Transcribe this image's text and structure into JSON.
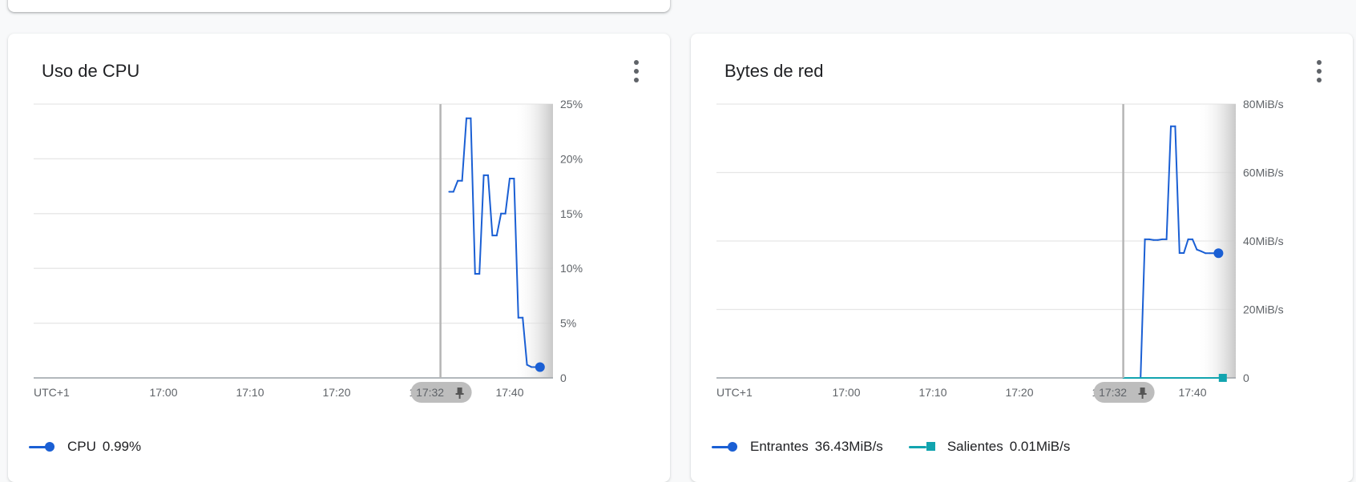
{
  "colors": {
    "cpu": "#1a5fd4",
    "incoming": "#1a5fd4",
    "outgoing": "#12a4af"
  },
  "cards": [
    {
      "title": "Uso de CPU",
      "legend": [
        {
          "label": "CPU",
          "value": "0.99%",
          "marker": "dot"
        }
      ]
    },
    {
      "title": "Bytes de red",
      "legend": [
        {
          "label": "Entrantes",
          "value": "36.43MiB/s",
          "marker": "dot"
        },
        {
          "label": "Salientes",
          "value": "0.01MiB/s",
          "marker": "square"
        }
      ]
    }
  ],
  "chart_data": [
    {
      "type": "line",
      "title": "Uso de CPU",
      "x_ticks": [
        "UTC+1",
        "17:00",
        "17:10",
        "17:20",
        "17:30",
        "17:40"
      ],
      "x_range": [
        "16:45",
        "17:45"
      ],
      "y_ticks": [
        "0",
        "5%",
        "10%",
        "15%",
        "20%",
        "25%"
      ],
      "ylim": [
        0,
        25
      ],
      "y_unit": "%",
      "cursor_time": "17:32",
      "grid": true,
      "series": [
        {
          "name": "CPU",
          "color": "#1a5fd4",
          "x": [
            "17:33",
            "17:33.5",
            "17:34",
            "17:34.5",
            "17:35",
            "17:35.5",
            "17:36",
            "17:36.5",
            "17:37",
            "17:37.5",
            "17:38",
            "17:38.5",
            "17:39",
            "17:39.5",
            "17:40",
            "17:40.5",
            "17:41",
            "17:41.5",
            "17:42",
            "17:42.5",
            "17:43",
            "17:43.5"
          ],
          "values": [
            17.0,
            17.0,
            18.0,
            18.0,
            23.7,
            23.7,
            9.5,
            9.5,
            18.5,
            18.5,
            13.0,
            13.0,
            15.0,
            15.0,
            18.2,
            18.2,
            5.5,
            5.5,
            1.2,
            1.0,
            0.99,
            0.99
          ]
        }
      ],
      "legend": "bottom-left"
    },
    {
      "type": "line",
      "title": "Bytes de red",
      "x_ticks": [
        "UTC+1",
        "17:00",
        "17:10",
        "17:20",
        "17:30",
        "17:40"
      ],
      "x_range": [
        "16:45",
        "17:45"
      ],
      "y_ticks": [
        "0",
        "20MiB/s",
        "40MiB/s",
        "60MiB/s",
        "80MiB/s"
      ],
      "ylim": [
        0,
        80
      ],
      "y_unit": "MiB/s",
      "cursor_time": "17:32",
      "grid": true,
      "series": [
        {
          "name": "Entrantes",
          "color": "#1a5fd4",
          "x": [
            "17:33",
            "17:34",
            "17:34.5",
            "17:35",
            "17:35.5",
            "17:36",
            "17:36.5",
            "17:37",
            "17:37.5",
            "17:38",
            "17:38.5",
            "17:39",
            "17:39.5",
            "17:40",
            "17:40.5",
            "17:41",
            "17:41.5",
            "17:42",
            "17:42.5",
            "17:43"
          ],
          "values": [
            0,
            0,
            40.5,
            40.5,
            40.3,
            40.3,
            40.5,
            40.5,
            73.5,
            73.5,
            36.5,
            36.5,
            40.5,
            40.5,
            37.5,
            37.0,
            36.43,
            36.43,
            36.43,
            36.43
          ]
        },
        {
          "name": "Salientes",
          "color": "#12a4af",
          "x": [
            "17:32",
            "17:34",
            "17:36",
            "17:38",
            "17:40",
            "17:42",
            "17:43.5"
          ],
          "values": [
            0.01,
            0.01,
            0.01,
            0.01,
            0.01,
            0.01,
            0.01
          ]
        }
      ],
      "legend": "bottom-left"
    }
  ]
}
